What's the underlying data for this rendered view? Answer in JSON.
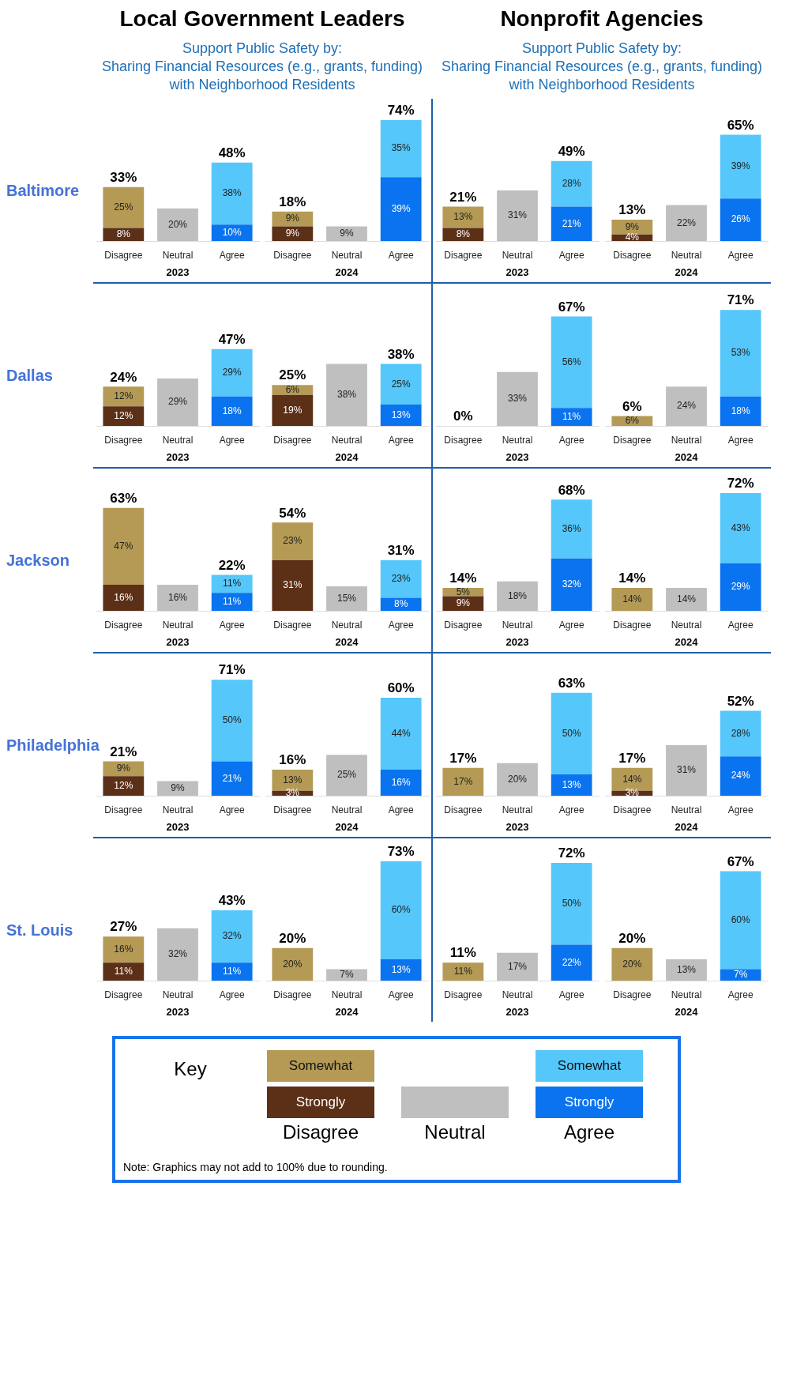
{
  "chart_data": [
    {
      "type": "bar",
      "stacked": true,
      "title": "Local Government Leaders",
      "subtitle": "Support Public Safety by:\nSharing Financial Resources (e.g., grants, funding) with Neighborhood Residents",
      "ylabel": "Baltimore",
      "legend": "bottom",
      "legend_title": "Key",
      "annotations": [
        "Note: Graphics may not add to 100% due to rounding."
      ],
      "categories": [
        "Disagree",
        "Neutral",
        "Agree"
      ],
      "xlabel": "2023",
      "totals": [
        "33%",
        null,
        "48%"
      ],
      "series": [
        {
          "name": "Strongly",
          "colors": [
            "#5c2f17",
            null,
            "#0a73ef"
          ],
          "values": [
            8,
            null,
            10
          ],
          "value_labels": [
            "8%",
            null,
            "10%"
          ]
        },
        {
          "color": "#bfbfbf",
          "values": [
            null,
            20,
            null
          ],
          "value_labels": [
            null,
            "20%",
            null
          ]
        },
        {
          "name": "Somewhat",
          "colors": [
            "#b49a55",
            null,
            "#55c7fb"
          ],
          "values": [
            25,
            null,
            38
          ],
          "value_labels": [
            "25%",
            null,
            "38%"
          ]
        }
      ]
    },
    {
      "type": "bar",
      "stacked": true,
      "categories": [
        "Disagree",
        "Neutral",
        "Agree"
      ],
      "xlabel": "2024",
      "totals": [
        "18%",
        null,
        "74%"
      ],
      "series": [
        {
          "colors": [
            "#5c2f17",
            null,
            "#0a73ef"
          ],
          "values": [
            9,
            null,
            39
          ],
          "value_labels": [
            "9%",
            null,
            "39%"
          ]
        },
        {
          "color": "#bfbfbf",
          "values": [
            null,
            9,
            null
          ],
          "value_labels": [
            null,
            "9%",
            null
          ]
        },
        {
          "colors": [
            "#b49a55",
            null,
            "#55c7fb"
          ],
          "values": [
            9,
            null,
            35
          ],
          "value_labels": [
            "9%",
            null,
            "35%"
          ]
        }
      ]
    },
    {
      "type": "bar",
      "stacked": true,
      "title": "Nonprofit Agencies",
      "subtitle": "Support Public Safety by:\nSharing Financial Resources (e.g., grants, funding) with Neighborhood Residents",
      "categories": [
        "Disagree",
        "Neutral",
        "Agree"
      ],
      "xlabel": "2023",
      "totals": [
        "21%",
        null,
        "49%"
      ],
      "series": [
        {
          "colors": [
            "#5c2f17",
            null,
            "#0a73ef"
          ],
          "values": [
            8,
            null,
            21
          ],
          "value_labels": [
            "8%",
            null,
            "21%"
          ]
        },
        {
          "color": "#bfbfbf",
          "values": [
            null,
            31,
            null
          ],
          "value_labels": [
            null,
            "31%",
            null
          ]
        },
        {
          "colors": [
            "#b49a55",
            null,
            "#55c7fb"
          ],
          "values": [
            13,
            null,
            28
          ],
          "value_labels": [
            "13%",
            null,
            "28%"
          ]
        }
      ]
    },
    {
      "type": "bar",
      "stacked": true,
      "categories": [
        "Disagree",
        "Neutral",
        "Agree"
      ],
      "xlabel": "2024",
      "totals": [
        "13%",
        null,
        "65%"
      ],
      "series": [
        {
          "colors": [
            "#5c2f17",
            null,
            "#0a73ef"
          ],
          "values": [
            4,
            null,
            26
          ],
          "value_labels": [
            "4%",
            null,
            "26%"
          ]
        },
        {
          "color": "#bfbfbf",
          "values": [
            null,
            22,
            null
          ],
          "value_labels": [
            null,
            "22%",
            null
          ]
        },
        {
          "colors": [
            "#b49a55",
            null,
            "#55c7fb"
          ],
          "values": [
            9,
            null,
            39
          ],
          "value_labels": [
            "9%",
            null,
            "39%"
          ]
        }
      ]
    },
    {
      "type": "bar",
      "stacked": true,
      "ylabel": "Dallas",
      "categories": [
        "Disagree",
        "Neutral",
        "Agree"
      ],
      "xlabel": "2023",
      "totals": [
        "24%",
        null,
        "47%"
      ],
      "series": [
        {
          "colors": [
            "#5c2f17",
            null,
            "#0a73ef"
          ],
          "values": [
            12,
            null,
            18
          ],
          "value_labels": [
            "12%",
            null,
            "18%"
          ]
        },
        {
          "color": "#bfbfbf",
          "values": [
            null,
            29,
            null
          ],
          "value_labels": [
            null,
            "29%",
            null
          ]
        },
        {
          "colors": [
            "#b49a55",
            null,
            "#55c7fb"
          ],
          "values": [
            12,
            null,
            29
          ],
          "value_labels": [
            "12%",
            null,
            "29%"
          ]
        }
      ]
    },
    {
      "type": "bar",
      "stacked": true,
      "categories": [
        "Disagree",
        "Neutral",
        "Agree"
      ],
      "xlabel": "2024",
      "totals": [
        "25%",
        null,
        "38%"
      ],
      "series": [
        {
          "colors": [
            "#5c2f17",
            null,
            "#0a73ef"
          ],
          "values": [
            19,
            null,
            13
          ],
          "value_labels": [
            "19%",
            null,
            "13%"
          ]
        },
        {
          "color": "#bfbfbf",
          "values": [
            null,
            38,
            null
          ],
          "value_labels": [
            null,
            "38%",
            null
          ]
        },
        {
          "colors": [
            "#b49a55",
            null,
            "#55c7fb"
          ],
          "values": [
            6,
            null,
            25
          ],
          "value_labels": [
            "6%",
            null,
            "25%"
          ]
        }
      ]
    },
    {
      "type": "bar",
      "stacked": true,
      "categories": [
        "Disagree",
        "Neutral",
        "Agree"
      ],
      "xlabel": "2023",
      "totals": [
        "0%",
        null,
        "67%"
      ],
      "series": [
        {
          "colors": [
            "#5c2f17",
            null,
            "#0a73ef"
          ],
          "values": [
            null,
            null,
            11
          ],
          "value_labels": [
            null,
            null,
            "11%"
          ]
        },
        {
          "color": "#bfbfbf",
          "values": [
            null,
            33,
            null
          ],
          "value_labels": [
            null,
            "33%",
            null
          ]
        },
        {
          "colors": [
            "#b49a55",
            null,
            "#55c7fb"
          ],
          "values": [
            null,
            null,
            56
          ],
          "value_labels": [
            null,
            null,
            "56%"
          ]
        }
      ]
    },
    {
      "type": "bar",
      "stacked": true,
      "categories": [
        "Disagree",
        "Neutral",
        "Agree"
      ],
      "xlabel": "2024",
      "totals": [
        "6%",
        null,
        "71%"
      ],
      "series": [
        {
          "colors": [
            "#5c2f17",
            null,
            "#0a73ef"
          ],
          "values": [
            null,
            null,
            18
          ],
          "value_labels": [
            null,
            null,
            "18%"
          ]
        },
        {
          "color": "#bfbfbf",
          "values": [
            null,
            24,
            null
          ],
          "value_labels": [
            null,
            "24%",
            null
          ]
        },
        {
          "colors": [
            "#b49a55",
            null,
            "#55c7fb"
          ],
          "values": [
            6,
            null,
            53
          ],
          "value_labels": [
            "6%",
            null,
            "53%"
          ]
        }
      ]
    },
    {
      "type": "bar",
      "stacked": true,
      "ylabel": "Jackson",
      "categories": [
        "Disagree",
        "Neutral",
        "Agree"
      ],
      "xlabel": "2023",
      "totals": [
        "63%",
        null,
        "22%"
      ],
      "series": [
        {
          "colors": [
            "#5c2f17",
            null,
            "#0a73ef"
          ],
          "values": [
            16,
            null,
            11
          ],
          "value_labels": [
            "16%",
            null,
            "11%"
          ]
        },
        {
          "color": "#bfbfbf",
          "values": [
            null,
            16,
            null
          ],
          "value_labels": [
            null,
            "16%",
            null
          ]
        },
        {
          "colors": [
            "#b49a55",
            null,
            "#55c7fb"
          ],
          "values": [
            47,
            null,
            11
          ],
          "value_labels": [
            "47%",
            null,
            "11%"
          ]
        }
      ]
    },
    {
      "type": "bar",
      "stacked": true,
      "categories": [
        "Disagree",
        "Neutral",
        "Agree"
      ],
      "xlabel": "2024",
      "totals": [
        "54%",
        null,
        "31%"
      ],
      "series": [
        {
          "colors": [
            "#5c2f17",
            null,
            "#0a73ef"
          ],
          "values": [
            31,
            null,
            8
          ],
          "value_labels": [
            "31%",
            null,
            "8%"
          ]
        },
        {
          "color": "#bfbfbf",
          "values": [
            null,
            15,
            null
          ],
          "value_labels": [
            null,
            "15%",
            null
          ]
        },
        {
          "colors": [
            "#b49a55",
            null,
            "#55c7fb"
          ],
          "values": [
            23,
            null,
            23
          ],
          "value_labels": [
            "23%",
            null,
            "23%"
          ]
        }
      ]
    },
    {
      "type": "bar",
      "stacked": true,
      "categories": [
        "Disagree",
        "Neutral",
        "Agree"
      ],
      "xlabel": "2023",
      "totals": [
        "14%",
        null,
        "68%"
      ],
      "series": [
        {
          "colors": [
            "#5c2f17",
            null,
            "#0a73ef"
          ],
          "values": [
            9,
            null,
            32
          ],
          "value_labels": [
            "9%",
            null,
            "32%"
          ]
        },
        {
          "color": "#bfbfbf",
          "values": [
            null,
            18,
            null
          ],
          "value_labels": [
            null,
            "18%",
            null
          ]
        },
        {
          "colors": [
            "#b49a55",
            null,
            "#55c7fb"
          ],
          "values": [
            5,
            null,
            36
          ],
          "value_labels": [
            "5%",
            null,
            "36%"
          ]
        }
      ]
    },
    {
      "type": "bar",
      "stacked": true,
      "categories": [
        "Disagree",
        "Neutral",
        "Agree"
      ],
      "xlabel": "2024",
      "totals": [
        "14%",
        null,
        "72%"
      ],
      "series": [
        {
          "colors": [
            "#5c2f17",
            null,
            "#0a73ef"
          ],
          "values": [
            null,
            null,
            29
          ],
          "value_labels": [
            null,
            null,
            "29%"
          ]
        },
        {
          "color": "#bfbfbf",
          "values": [
            null,
            14,
            null
          ],
          "value_labels": [
            null,
            "14%",
            null
          ]
        },
        {
          "colors": [
            "#b49a55",
            null,
            "#55c7fb"
          ],
          "values": [
            14,
            null,
            43
          ],
          "value_labels": [
            "14%",
            null,
            "43%"
          ]
        }
      ]
    },
    {
      "type": "bar",
      "stacked": true,
      "ylabel": "Philadelphia",
      "categories": [
        "Disagree",
        "Neutral",
        "Agree"
      ],
      "xlabel": "2023",
      "totals": [
        "21%",
        null,
        "71%"
      ],
      "series": [
        {
          "colors": [
            "#5c2f17",
            null,
            "#0a73ef"
          ],
          "values": [
            12,
            null,
            21
          ],
          "value_labels": [
            "12%",
            null,
            "21%"
          ]
        },
        {
          "color": "#bfbfbf",
          "values": [
            null,
            9,
            null
          ],
          "value_labels": [
            null,
            "9%",
            null
          ]
        },
        {
          "colors": [
            "#b49a55",
            null,
            "#55c7fb"
          ],
          "values": [
            9,
            null,
            50
          ],
          "value_labels": [
            "9%",
            null,
            "50%"
          ]
        }
      ]
    },
    {
      "type": "bar",
      "stacked": true,
      "categories": [
        "Disagree",
        "Neutral",
        "Agree"
      ],
      "xlabel": "2024",
      "totals": [
        "16%",
        null,
        "60%"
      ],
      "series": [
        {
          "colors": [
            "#5c2f17",
            null,
            "#0a73ef"
          ],
          "values": [
            3,
            null,
            16
          ],
          "value_labels": [
            "3%",
            null,
            "16%"
          ]
        },
        {
          "color": "#bfbfbf",
          "values": [
            null,
            25,
            null
          ],
          "value_labels": [
            null,
            "25%",
            null
          ]
        },
        {
          "colors": [
            "#b49a55",
            null,
            "#55c7fb"
          ],
          "values": [
            13,
            null,
            44
          ],
          "value_labels": [
            "13%",
            null,
            "44%"
          ]
        }
      ]
    },
    {
      "type": "bar",
      "stacked": true,
      "categories": [
        "Disagree",
        "Neutral",
        "Agree"
      ],
      "xlabel": "2023",
      "totals": [
        "17%",
        null,
        "63%"
      ],
      "series": [
        {
          "colors": [
            "#5c2f17",
            null,
            "#0a73ef"
          ],
          "values": [
            null,
            null,
            13
          ],
          "value_labels": [
            null,
            null,
            "13%"
          ]
        },
        {
          "color": "#bfbfbf",
          "values": [
            null,
            20,
            null
          ],
          "value_labels": [
            null,
            "20%",
            null
          ]
        },
        {
          "colors": [
            "#b49a55",
            null,
            "#55c7fb"
          ],
          "values": [
            17,
            null,
            50
          ],
          "value_labels": [
            "17%",
            null,
            "50%"
          ]
        }
      ]
    },
    {
      "type": "bar",
      "stacked": true,
      "categories": [
        "Disagree",
        "Neutral",
        "Agree"
      ],
      "xlabel": "2024",
      "totals": [
        "17%",
        null,
        "52%"
      ],
      "series": [
        {
          "colors": [
            "#5c2f17",
            null,
            "#0a73ef"
          ],
          "values": [
            3,
            null,
            24
          ],
          "value_labels": [
            "3%",
            null,
            "24%"
          ]
        },
        {
          "color": "#bfbfbf",
          "values": [
            null,
            31,
            null
          ],
          "value_labels": [
            null,
            "31%",
            null
          ]
        },
        {
          "colors": [
            "#b49a55",
            null,
            "#55c7fb"
          ],
          "values": [
            14,
            null,
            28
          ],
          "value_labels": [
            "14%",
            null,
            "28%"
          ]
        }
      ]
    },
    {
      "type": "bar",
      "stacked": true,
      "ylabel": "St. Louis",
      "categories": [
        "Disagree",
        "Neutral",
        "Agree"
      ],
      "xlabel": "2023",
      "totals": [
        "27%",
        null,
        "43%"
      ],
      "series": [
        {
          "colors": [
            "#5c2f17",
            null,
            "#0a73ef"
          ],
          "values": [
            11,
            null,
            11
          ],
          "value_labels": [
            "11%",
            null,
            "11%"
          ]
        },
        {
          "color": "#bfbfbf",
          "values": [
            null,
            32,
            null
          ],
          "value_labels": [
            null,
            "32%",
            null
          ]
        },
        {
          "colors": [
            "#b49a55",
            null,
            "#55c7fb"
          ],
          "values": [
            16,
            null,
            32
          ],
          "value_labels": [
            "16%",
            null,
            "32%"
          ]
        }
      ]
    },
    {
      "type": "bar",
      "stacked": true,
      "categories": [
        "Disagree",
        "Neutral",
        "Agree"
      ],
      "xlabel": "2024",
      "totals": [
        "20%",
        null,
        "73%"
      ],
      "series": [
        {
          "colors": [
            "#5c2f17",
            null,
            "#0a73ef"
          ],
          "values": [
            null,
            null,
            13
          ],
          "value_labels": [
            null,
            null,
            "13%"
          ]
        },
        {
          "color": "#bfbfbf",
          "values": [
            null,
            7,
            null
          ],
          "value_labels": [
            null,
            "7%",
            null
          ]
        },
        {
          "colors": [
            "#b49a55",
            null,
            "#55c7fb"
          ],
          "values": [
            20,
            null,
            60
          ],
          "value_labels": [
            "20%",
            null,
            "60%"
          ]
        }
      ]
    },
    {
      "type": "bar",
      "stacked": true,
      "categories": [
        "Disagree",
        "Neutral",
        "Agree"
      ],
      "xlabel": "2023",
      "totals": [
        "11%",
        null,
        "72%"
      ],
      "series": [
        {
          "colors": [
            "#5c2f17",
            null,
            "#0a73ef"
          ],
          "values": [
            null,
            null,
            22
          ],
          "value_labels": [
            null,
            null,
            "22%"
          ]
        },
        {
          "color": "#bfbfbf",
          "values": [
            null,
            17,
            null
          ],
          "value_labels": [
            null,
            "17%",
            null
          ]
        },
        {
          "colors": [
            "#b49a55",
            null,
            "#55c7fb"
          ],
          "values": [
            11,
            null,
            50
          ],
          "value_labels": [
            "11%",
            null,
            "50%"
          ]
        }
      ]
    },
    {
      "type": "bar",
      "stacked": true,
      "categories": [
        "Disagree",
        "Neutral",
        "Agree"
      ],
      "xlabel": "2024",
      "totals": [
        "20%",
        null,
        "67%"
      ],
      "series": [
        {
          "colors": [
            "#5c2f17",
            null,
            "#0a73ef"
          ],
          "values": [
            null,
            null,
            7
          ],
          "value_labels": [
            null,
            null,
            "7%"
          ]
        },
        {
          "color": "#bfbfbf",
          "values": [
            null,
            13,
            null
          ],
          "value_labels": [
            null,
            "13%",
            null
          ]
        },
        {
          "colors": [
            "#b49a55",
            null,
            "#55c7fb"
          ],
          "values": [
            20,
            null,
            60
          ],
          "value_labels": [
            "20%",
            null,
            "60%"
          ]
        }
      ]
    }
  ]
}
